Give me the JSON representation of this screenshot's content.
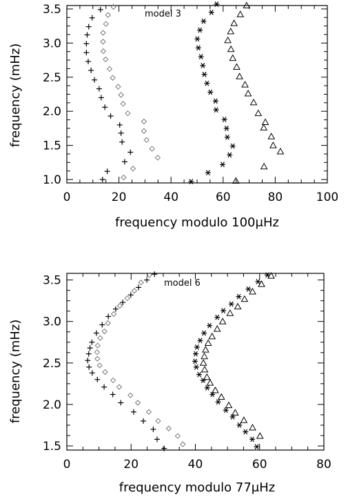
{
  "chart_data": [
    {
      "type": "scatter",
      "panel_label": "model 3",
      "xlabel": "frequency modulo 100μHz",
      "ylabel": "frequency (mHz)",
      "xlim": [
        0,
        100
      ],
      "ylim": [
        0.95,
        3.55
      ],
      "xticks": [
        "0",
        "20",
        "40",
        "60",
        "80",
        "100"
      ],
      "yticks": [
        "1.0",
        "1.5",
        "2.0",
        "2.5",
        "3.0",
        "3.5"
      ],
      "grid": false,
      "legend": "none",
      "series": [
        {
          "marker": "plus",
          "points": [
            [
              13.7,
              1.0
            ],
            [
              15.5,
              1.12
            ],
            [
              22.2,
              1.26
            ],
            [
              24.4,
              1.4
            ],
            [
              21.2,
              1.55
            ],
            [
              20.8,
              1.68
            ],
            [
              20.3,
              1.8
            ],
            [
              16.8,
              1.93
            ],
            [
              14.6,
              2.06
            ],
            [
              13.2,
              2.2
            ],
            [
              12.4,
              2.33
            ],
            [
              10.6,
              2.46
            ],
            [
              9.3,
              2.6
            ],
            [
              8.2,
              2.73
            ],
            [
              7.5,
              2.86
            ],
            [
              7.5,
              2.99
            ],
            [
              7.8,
              3.12
            ],
            [
              8.4,
              3.24
            ],
            [
              9.7,
              3.37
            ],
            [
              12.9,
              3.49
            ]
          ]
        },
        {
          "marker": "diamond",
          "points": [
            [
              21.8,
              1.03
            ],
            [
              25.4,
              1.16
            ],
            [
              34.9,
              1.32
            ],
            [
              32.7,
              1.45
            ],
            [
              30.6,
              1.58
            ],
            [
              29.6,
              1.71
            ],
            [
              29.6,
              1.85
            ],
            [
              23.4,
              1.97
            ],
            [
              21.6,
              2.11
            ],
            [
              20.8,
              2.24
            ],
            [
              19.7,
              2.36
            ],
            [
              17.6,
              2.49
            ],
            [
              16.4,
              2.62
            ],
            [
              14.9,
              2.76
            ],
            [
              14.0,
              2.88
            ],
            [
              13.9,
              3.02
            ],
            [
              13.9,
              3.15
            ],
            [
              15.0,
              3.28
            ],
            [
              15.8,
              3.41
            ],
            [
              17.9,
              3.53
            ]
          ]
        },
        {
          "marker": "asterisk",
          "points": [
            [
              47.7,
              0.97
            ],
            [
              54.2,
              1.1
            ],
            [
              59.8,
              1.22
            ],
            [
              62.5,
              1.36
            ],
            [
              63.7,
              1.49
            ],
            [
              61.6,
              1.62
            ],
            [
              61.3,
              1.75
            ],
            [
              60.5,
              1.88
            ],
            [
              57.3,
              2.02
            ],
            [
              57.1,
              2.15
            ],
            [
              55.1,
              2.28
            ],
            [
              53.8,
              2.41
            ],
            [
              52.8,
              2.54
            ],
            [
              52.2,
              2.67
            ],
            [
              51.5,
              2.8
            ],
            [
              50.5,
              2.93
            ],
            [
              50.1,
              3.06
            ],
            [
              51.1,
              3.19
            ],
            [
              52.5,
              3.32
            ],
            [
              55.5,
              3.45
            ],
            [
              57.5,
              3.57
            ]
          ]
        },
        {
          "marker": "triangle",
          "points": [
            [
              64.9,
              0.98
            ],
            [
              75.7,
              1.19
            ],
            [
              82.0,
              1.41
            ],
            [
              79.2,
              1.5
            ],
            [
              78.5,
              1.63
            ],
            [
              75.6,
              1.76
            ],
            [
              76.2,
              1.84
            ],
            [
              73.5,
              1.97
            ],
            [
              71.7,
              2.13
            ],
            [
              69.6,
              2.26
            ],
            [
              68.4,
              2.39
            ],
            [
              66.3,
              2.51
            ],
            [
              65.2,
              2.65
            ],
            [
              63.7,
              2.78
            ],
            [
              63.0,
              2.91
            ],
            [
              61.8,
              3.04
            ],
            [
              62.9,
              3.17
            ],
            [
              64.2,
              3.29
            ],
            [
              66.6,
              3.42
            ],
            [
              69.0,
              3.55
            ]
          ]
        }
      ]
    },
    {
      "type": "scatter",
      "panel_label": "model 6",
      "xlabel": "frequency modulo 77μHz",
      "ylabel": "frequency (mHz)",
      "xlim": [
        0,
        80
      ],
      "ylim": [
        1.45,
        3.58
      ],
      "xticks": [
        "0",
        "20",
        "40",
        "60",
        "80"
      ],
      "yticks": [
        "1.5",
        "2.0",
        "2.5",
        "3.0",
        "3.5"
      ],
      "grid": false,
      "legend": "none",
      "series": [
        {
          "marker": "plus",
          "points": [
            [
              30.3,
              1.47
            ],
            [
              28.1,
              1.58
            ],
            [
              26.9,
              1.7
            ],
            [
              23.8,
              1.8
            ],
            [
              20.8,
              1.91
            ],
            [
              16.8,
              2.02
            ],
            [
              14.3,
              2.12
            ],
            [
              11.6,
              2.21
            ],
            [
              9.5,
              2.3
            ],
            [
              7.9,
              2.38
            ],
            [
              6.9,
              2.45
            ],
            [
              6.5,
              2.53
            ],
            [
              6.8,
              2.61
            ],
            [
              7.2,
              2.68
            ],
            [
              7.8,
              2.75
            ],
            [
              9.2,
              2.86
            ],
            [
              11.0,
              2.96
            ],
            [
              12.9,
              3.06
            ],
            [
              15.2,
              3.15
            ],
            [
              17.4,
              3.23
            ],
            [
              19.9,
              3.32
            ],
            [
              22.3,
              3.41
            ],
            [
              24.9,
              3.5
            ],
            [
              27.3,
              3.57
            ]
          ]
        },
        {
          "marker": "diamond",
          "points": [
            [
              36.1,
              1.52
            ],
            [
              34.5,
              1.62
            ],
            [
              31.7,
              1.71
            ],
            [
              28.4,
              1.8
            ],
            [
              25.5,
              1.91
            ],
            [
              22.1,
              2.02
            ],
            [
              19.8,
              2.11
            ],
            [
              16.3,
              2.21
            ],
            [
              14.4,
              2.29
            ],
            [
              11.9,
              2.39
            ],
            [
              10.2,
              2.47
            ],
            [
              9.5,
              2.55
            ],
            [
              9.4,
              2.63
            ],
            [
              9.6,
              2.71
            ],
            [
              10.4,
              2.8
            ],
            [
              11.7,
              2.88
            ],
            [
              12.8,
              2.98
            ],
            [
              14.6,
              3.09
            ],
            [
              16.5,
              3.19
            ],
            [
              18.8,
              3.28
            ],
            [
              21.0,
              3.37
            ],
            [
              23.1,
              3.47
            ],
            [
              25.7,
              3.56
            ]
          ]
        },
        {
          "marker": "asterisk",
          "points": [
            [
              59.1,
              1.49
            ],
            [
              57.7,
              1.58
            ],
            [
              55.6,
              1.67
            ],
            [
              53.7,
              1.75
            ],
            [
              51.6,
              1.85
            ],
            [
              49.5,
              1.93
            ],
            [
              47.1,
              2.03
            ],
            [
              45.3,
              2.12
            ],
            [
              43.7,
              2.2
            ],
            [
              42.4,
              2.29
            ],
            [
              41.2,
              2.36
            ],
            [
              40.3,
              2.45
            ],
            [
              39.9,
              2.52
            ],
            [
              40.1,
              2.61
            ],
            [
              40.5,
              2.69
            ],
            [
              41.5,
              2.77
            ],
            [
              42.7,
              2.86
            ],
            [
              44.4,
              2.95
            ],
            [
              46.8,
              3.05
            ],
            [
              48.7,
              3.13
            ],
            [
              51.2,
              3.21
            ],
            [
              53.5,
              3.3
            ],
            [
              56.5,
              3.39
            ],
            [
              59.5,
              3.48
            ],
            [
              62.4,
              3.56
            ]
          ]
        },
        {
          "marker": "triangle",
          "points": [
            [
              60.1,
              1.62
            ],
            [
              57.8,
              1.72
            ],
            [
              55.1,
              1.81
            ],
            [
              52.4,
              1.9
            ],
            [
              50.4,
              1.99
            ],
            [
              48.1,
              2.09
            ],
            [
              46.2,
              2.17
            ],
            [
              44.6,
              2.26
            ],
            [
              43.6,
              2.33
            ],
            [
              42.9,
              2.42
            ],
            [
              42.5,
              2.5
            ],
            [
              42.8,
              2.58
            ],
            [
              43.2,
              2.66
            ],
            [
              44.0,
              2.74
            ],
            [
              45.2,
              2.82
            ],
            [
              46.8,
              2.91
            ],
            [
              48.5,
              3.0
            ],
            [
              50.8,
              3.1
            ],
            [
              53.2,
              3.18
            ],
            [
              55.3,
              3.27
            ],
            [
              57.8,
              3.36
            ],
            [
              60.6,
              3.45
            ],
            [
              63.6,
              3.55
            ]
          ]
        }
      ]
    }
  ]
}
